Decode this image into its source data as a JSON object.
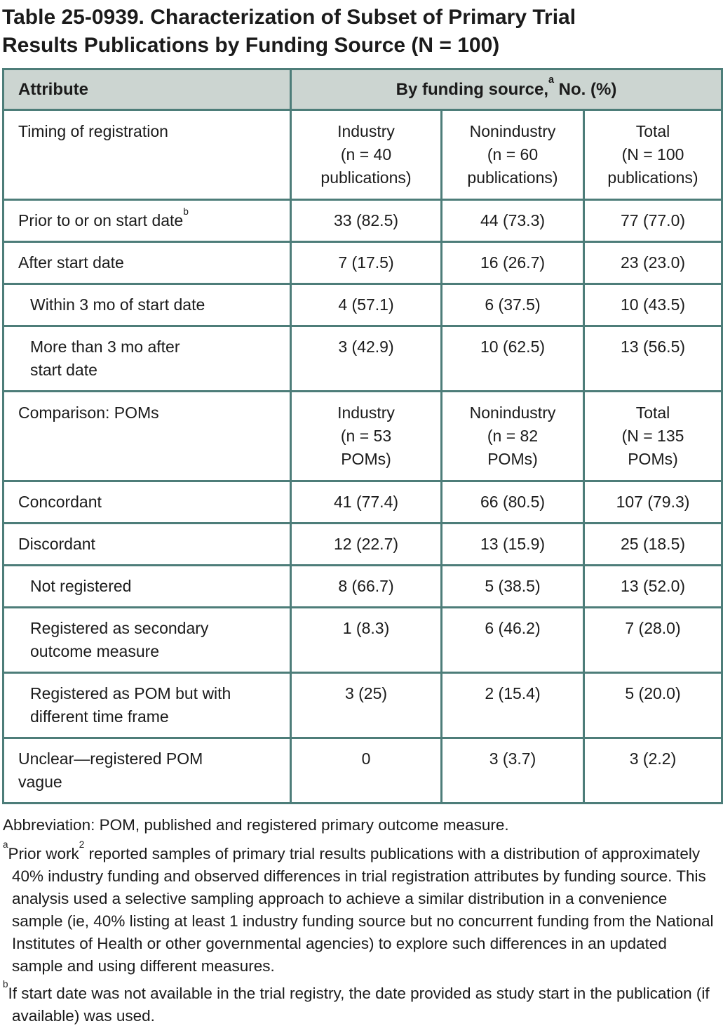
{
  "title": "Table 25-0939. Characterization of Subset of Primary Trial\nResults Publications by Funding Source (N = 100)",
  "colors": {
    "border": "#4d7d79",
    "header_bg": "#ccd5d1",
    "text": "#1b1b1b"
  },
  "table": {
    "header": {
      "attribute": "Attribute",
      "group_text": "By funding source,",
      "group_sup": "a",
      "group_rest": " No. (%)"
    },
    "rows": [
      {
        "type": "section",
        "label": "Timing of registration",
        "columns": [
          "Industry\n(n = 40\npublications)",
          "Nonindustry\n(n = 60\npublications)",
          "Total\n(N = 100\npublications)"
        ]
      },
      {
        "type": "data",
        "label": "Prior to or on start date",
        "sup": "b",
        "indent": false,
        "values": [
          "33 (82.5)",
          "44 (73.3)",
          "77 (77.0)"
        ]
      },
      {
        "type": "data",
        "label": "After start date",
        "indent": false,
        "values": [
          "7 (17.5)",
          "16 (26.7)",
          "23 (23.0)"
        ]
      },
      {
        "type": "data",
        "label": "Within 3 mo of start date",
        "indent": true,
        "values": [
          "4 (57.1)",
          "6 (37.5)",
          "10 (43.5)"
        ]
      },
      {
        "type": "data",
        "label": "More than 3 mo after\nstart date",
        "indent": true,
        "values": [
          "3 (42.9)",
          "10 (62.5)",
          "13 (56.5)"
        ]
      },
      {
        "type": "section",
        "label": "Comparison: POMs",
        "columns": [
          "Industry\n(n = 53\nPOMs)",
          "Nonindustry\n(n = 82\nPOMs)",
          "Total\n(N = 135\nPOMs)"
        ]
      },
      {
        "type": "data",
        "label": "Concordant",
        "indent": false,
        "values": [
          "41 (77.4)",
          "66 (80.5)",
          "107 (79.3)"
        ]
      },
      {
        "type": "data",
        "label": "Discordant",
        "indent": false,
        "values": [
          "12 (22.7)",
          "13 (15.9)",
          "25 (18.5)"
        ]
      },
      {
        "type": "data",
        "label": "Not registered",
        "indent": true,
        "values": [
          "8 (66.7)",
          "5 (38.5)",
          "13 (52.0)"
        ]
      },
      {
        "type": "data",
        "label": "Registered as secondary\noutcome measure",
        "indent": true,
        "values": [
          "1 (8.3)",
          "6 (46.2)",
          "7 (28.0)"
        ]
      },
      {
        "type": "data",
        "label": "Registered as POM but with\ndifferent time frame",
        "indent": true,
        "values": [
          "3 (25)",
          "2 (15.4)",
          "5 (20.0)"
        ]
      },
      {
        "type": "data",
        "label": "Unclear—registered POM\nvague",
        "indent": false,
        "values": [
          "0",
          "3 (3.7)",
          "3 (2.2)"
        ]
      }
    ]
  },
  "footnotes": {
    "abbreviation": "Abbreviation: POM, published and registered primary outcome measure.",
    "a": {
      "marker": "a",
      "text1": "Prior work",
      "ref": "2",
      "text2": " reported samples of primary trial results publications with a distribution of approximately 40% industry funding and observed differences in trial registration attributes by funding source. This analysis used a selective sampling approach to achieve a similar distribution in a convenience sample (ie, 40% listing at least 1 industry funding source but no concurrent funding from the National Institutes of Health or other governmental agencies) to explore such differences in an updated sample and using different measures."
    },
    "b": {
      "marker": "b",
      "text": "If start date was not available in the trial registry, the date provided as study start in the publication (if available) was used."
    }
  }
}
